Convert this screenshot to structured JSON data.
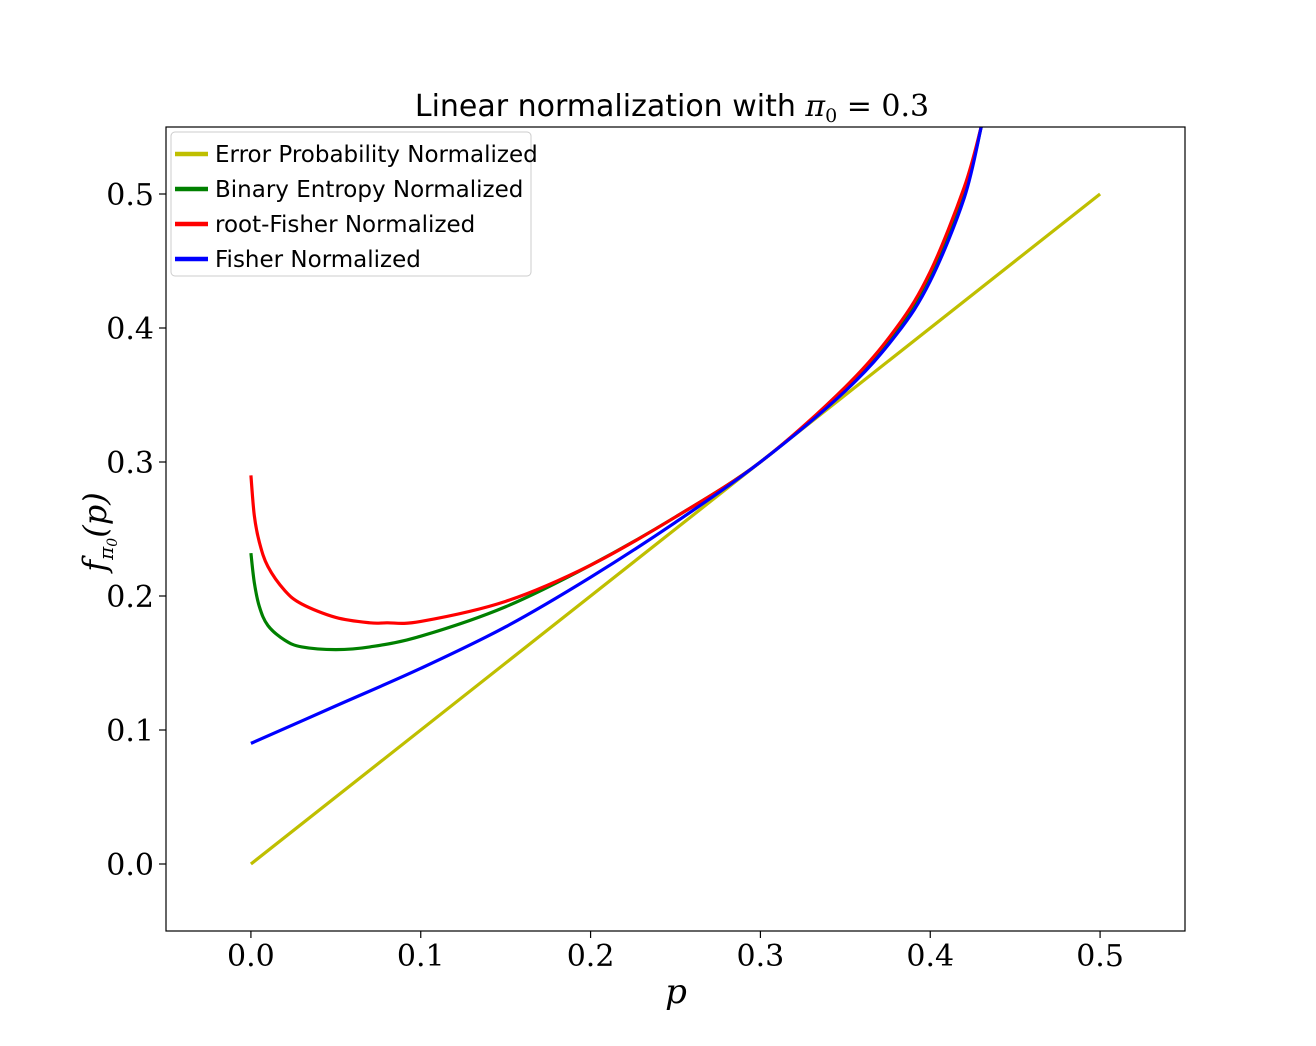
{
  "chart_data": {
    "type": "line",
    "title": "Linear normalization with π₀ = 0.3",
    "xlabel": "p",
    "ylabel": "f_{π₀}(p)",
    "xlim": [
      -0.05,
      0.55
    ],
    "ylim": [
      -0.05,
      0.55
    ],
    "xticks": [
      0.0,
      0.1,
      0.2,
      0.3,
      0.4,
      0.5
    ],
    "yticks": [
      0.0,
      0.1,
      0.2,
      0.3,
      0.4,
      0.5
    ],
    "xtick_labels": [
      "0.0",
      "0.1",
      "0.2",
      "0.3",
      "0.4",
      "0.5"
    ],
    "ytick_labels": [
      "0.0",
      "0.1",
      "0.2",
      "0.3",
      "0.4",
      "0.5"
    ],
    "grid": false,
    "legend_position": "top-left",
    "series": [
      {
        "name": "Error Probability Normalized",
        "color": "#bfbf00",
        "x": [
          0.0,
          0.5
        ],
        "y": [
          0.0,
          0.5
        ]
      },
      {
        "name": "Binary Entropy Normalized",
        "color": "#008000",
        "x": [
          0.0,
          0.002,
          0.005,
          0.01,
          0.02,
          0.03,
          0.05,
          0.07,
          0.1,
          0.15,
          0.2,
          0.25,
          0.3,
          0.35,
          0.38,
          0.4,
          0.42,
          0.43
        ],
        "y": [
          0.232,
          0.21,
          0.192,
          0.178,
          0.167,
          0.162,
          0.16,
          0.162,
          0.17,
          0.192,
          0.223,
          0.259,
          0.3,
          0.355,
          0.398,
          0.44,
          0.5,
          0.55
        ]
      },
      {
        "name": "root-Fisher Normalized",
        "color": "#ff0000",
        "x": [
          0.0,
          0.002,
          0.005,
          0.01,
          0.02,
          0.03,
          0.05,
          0.07,
          0.08,
          0.1,
          0.15,
          0.2,
          0.25,
          0.3,
          0.35,
          0.38,
          0.4,
          0.42,
          0.43
        ],
        "y": [
          0.29,
          0.26,
          0.24,
          0.222,
          0.204,
          0.194,
          0.184,
          0.18,
          0.18,
          0.181,
          0.196,
          0.223,
          0.259,
          0.3,
          0.356,
          0.4,
          0.442,
          0.505,
          0.55
        ]
      },
      {
        "name": "Fisher Normalized",
        "color": "#0000ff",
        "x": [
          0.0,
          0.05,
          0.1,
          0.15,
          0.2,
          0.25,
          0.3,
          0.35,
          0.38,
          0.4,
          0.42,
          0.43
        ],
        "y": [
          0.09,
          0.118,
          0.146,
          0.177,
          0.214,
          0.255,
          0.3,
          0.353,
          0.395,
          0.435,
          0.497,
          0.55
        ]
      }
    ]
  }
}
